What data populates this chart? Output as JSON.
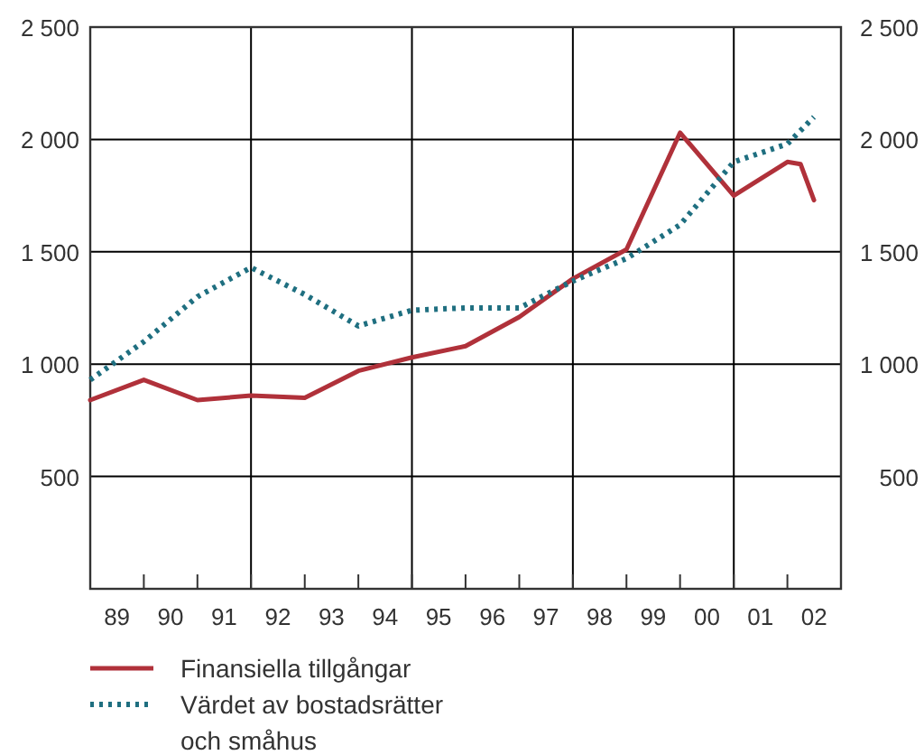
{
  "chart_data": {
    "type": "line",
    "xlim": [
      "1989-01-01",
      "2003-01-01"
    ],
    "xticks": [
      {
        "value": "1989-01-01",
        "label": null
      },
      {
        "value": "1989-07-02",
        "label": "89"
      },
      {
        "value": "1990-01-01",
        "label": null
      },
      {
        "value": "1990-07-02",
        "label": "90"
      },
      {
        "value": "1991-01-01",
        "label": null
      },
      {
        "value": "1991-07-02",
        "label": "91"
      },
      {
        "value": "1992-01-01",
        "label": null
      },
      {
        "value": "1992-07-02",
        "label": "92"
      },
      {
        "value": "1993-01-01",
        "label": null
      },
      {
        "value": "1993-07-02",
        "label": "93"
      },
      {
        "value": "1994-01-01",
        "label": null
      },
      {
        "value": "1994-07-02",
        "label": "94"
      },
      {
        "value": "1995-01-01",
        "label": null
      },
      {
        "value": "1995-07-02",
        "label": "95"
      },
      {
        "value": "1996-01-01",
        "label": null
      },
      {
        "value": "1996-07-02",
        "label": "96"
      },
      {
        "value": "1997-01-01",
        "label": null
      },
      {
        "value": "1997-07-02",
        "label": "97"
      },
      {
        "value": "1998-01-01",
        "label": null
      },
      {
        "value": "1998-07-02",
        "label": "98"
      },
      {
        "value": "1999-01-01",
        "label": null
      },
      {
        "value": "1999-07-02",
        "label": "99"
      },
      {
        "value": "2000-01-01",
        "label": null
      },
      {
        "value": "2000-07-02",
        "label": "00"
      },
      {
        "value": "2001-01-01",
        "label": null
      },
      {
        "value": "2001-07-02",
        "label": "01"
      },
      {
        "value": "2002-01-01",
        "label": null
      },
      {
        "value": "2002-07-02",
        "label": "02"
      }
    ],
    "ylim": [
      0,
      2500
    ],
    "yticks": [
      {
        "value": 500,
        "label": "500"
      },
      {
        "value": 1000,
        "label": "1 000"
      },
      {
        "value": 1500,
        "label": "1 500"
      },
      {
        "value": 2000,
        "label": "2 000"
      },
      {
        "value": 2500,
        "label": "2 500"
      }
    ],
    "y2lim": [
      0,
      2500
    ],
    "y2ticks": [
      {
        "value": 500,
        "label": "500"
      },
      {
        "value": 1000,
        "label": "1 000"
      },
      {
        "value": 1500,
        "label": "1 500"
      },
      {
        "value": 2000,
        "label": "2 000"
      },
      {
        "value": 2500,
        "label": "2 500"
      }
    ],
    "grid": "y",
    "ref_lines": [
      {
        "axis": "x",
        "value": "1992-01-01",
        "color": "#000000"
      },
      {
        "axis": "x",
        "value": "1995-01-01",
        "color": "#000000"
      },
      {
        "axis": "x",
        "value": "1998-01-01",
        "color": "#000000"
      },
      {
        "axis": "x",
        "value": "2001-01-01",
        "color": "#000000"
      }
    ],
    "legend": "bottom left",
    "series": [
      {
        "name": "Finansiella tillgångar",
        "color": "#b0313a",
        "line_style": "solid",
        "x": [
          "1989-01",
          "1990-01",
          "1991-01",
          "1992-01",
          "1993-01",
          "1994-01",
          "1995-01",
          "1996-01",
          "1997-01",
          "1998-01",
          "1999-01",
          "2000-01",
          "2001-01",
          "2002-01",
          "2002-04",
          "2002-07"
        ],
        "values": [
          840,
          930,
          840,
          860,
          850,
          970,
          1030,
          1080,
          1210,
          1380,
          1510,
          2030,
          1750,
          1900,
          1890,
          1730
        ]
      },
      {
        "name": "Värdet av bostadsrätter och småhus",
        "color": "#1f6f80",
        "line_style": "dotted",
        "x": [
          "1989-01",
          "1990-01",
          "1991-01",
          "1992-01",
          "1993-01",
          "1994-01",
          "1995-01",
          "1996-01",
          "1997-01",
          "1998-01",
          "1999-01",
          "2000-01",
          "2001-01",
          "2002-01",
          "2002-07"
        ],
        "values": [
          930,
          1100,
          1300,
          1430,
          1310,
          1170,
          1240,
          1250,
          1250,
          1370,
          1470,
          1620,
          1900,
          1980,
          2100
        ]
      }
    ]
  }
}
